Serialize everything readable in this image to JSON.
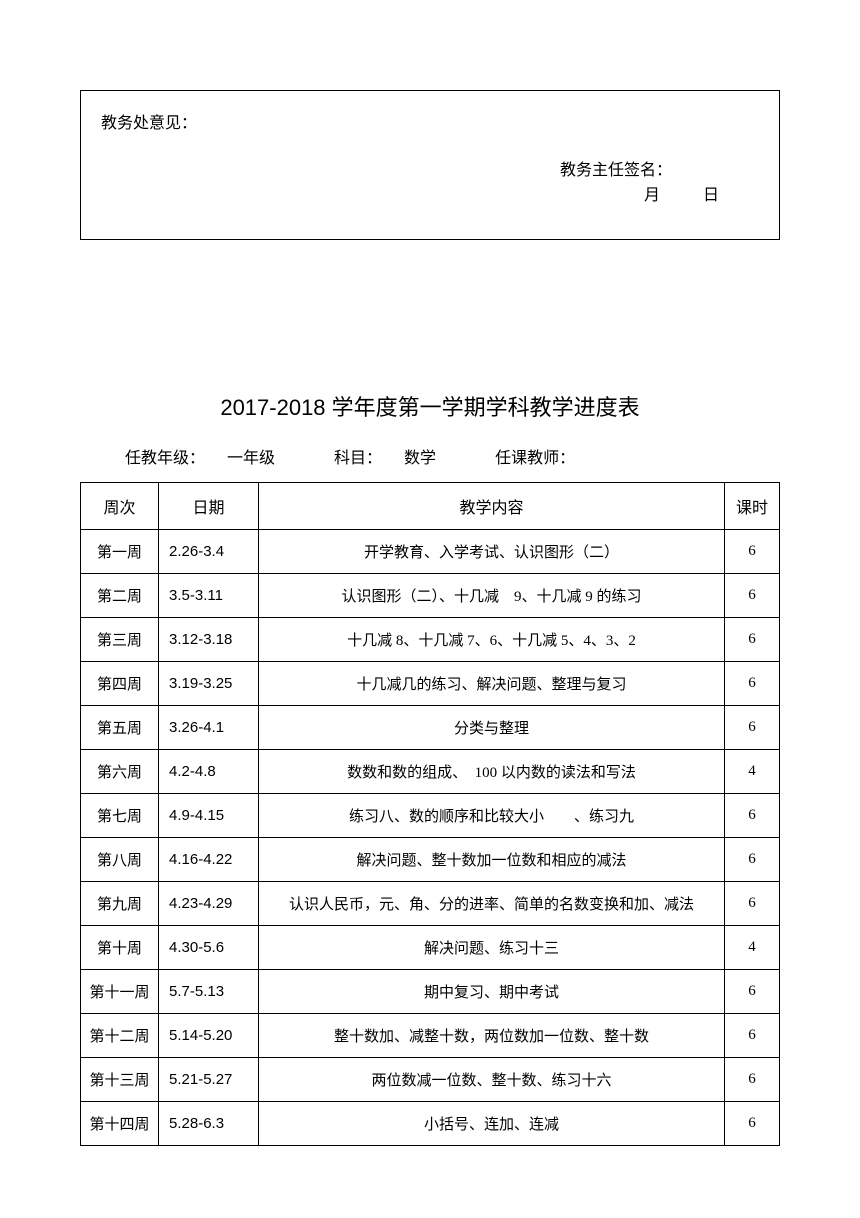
{
  "opinionBox": {
    "label": "教务处意见：",
    "signatureLabel": "教务主任签名：",
    "monthLabel": "月",
    "dayLabel": "日"
  },
  "title": "2017-2018 学年度第一学期学科教学进度表",
  "meta": {
    "gradeLabel": "任教年级：",
    "gradeValue": "一年级",
    "subjectLabel": "科目：",
    "subjectValue": "数学",
    "teacherLabel": "任课教师："
  },
  "headers": {
    "week": "周次",
    "date": "日期",
    "content": "教学内容",
    "hours": "课时"
  },
  "rows": [
    {
      "week": "第一周",
      "date": "2.26-3.4",
      "content": "开学教育、入学考试、认识图形（二）",
      "hours": "6"
    },
    {
      "week": "第二周",
      "date": "3.5-3.11",
      "content": "认识图形（二）、十几减　9、十几减 9 的练习",
      "hours": "6"
    },
    {
      "week": "第三周",
      "date": "3.12-3.18",
      "content": "十几减 8、十几减 7、6、十几减 5、4、3、2",
      "hours": "6"
    },
    {
      "week": "第四周",
      "date": "3.19-3.25",
      "content": "十几减几的练习、解决问题、整理与复习",
      "hours": "6"
    },
    {
      "week": "第五周",
      "date": "3.26-4.1",
      "content": "分类与整理",
      "hours": "6"
    },
    {
      "week": "第六周",
      "date": "4.2-4.8",
      "content": "数数和数的组成、　100 以内数的读法和写法",
      "hours": "4"
    },
    {
      "week": "第七周",
      "date": "4.9-4.15",
      "content": "练习八、数的顺序和比较大小　　、练习九",
      "hours": "6"
    },
    {
      "week": "第八周",
      "date": "4.16-4.22",
      "content": "解决问题、整十数加一位数和相应的减法",
      "hours": "6"
    },
    {
      "week": "第九周",
      "date": "4.23-4.29",
      "content": "认识人民币，元、角、分的进率、简单的名数变换和加、减法",
      "hours": "6"
    },
    {
      "week": "第十周",
      "date": "4.30-5.6",
      "content": "解决问题、练习十三",
      "hours": "4"
    },
    {
      "week": "第十一周",
      "date": "5.7-5.13",
      "content": "期中复习、期中考试",
      "hours": "6"
    },
    {
      "week": "第十二周",
      "date": "5.14-5.20",
      "content": "整十数加、减整十数，两位数加一位数、整十数",
      "hours": "6"
    },
    {
      "week": "第十三周",
      "date": "5.21-5.27",
      "content": "两位数减一位数、整十数、练习十六",
      "hours": "6"
    },
    {
      "week": "第十四周",
      "date": "5.28-6.3",
      "content": "小括号、连加、连减",
      "hours": "6"
    }
  ]
}
